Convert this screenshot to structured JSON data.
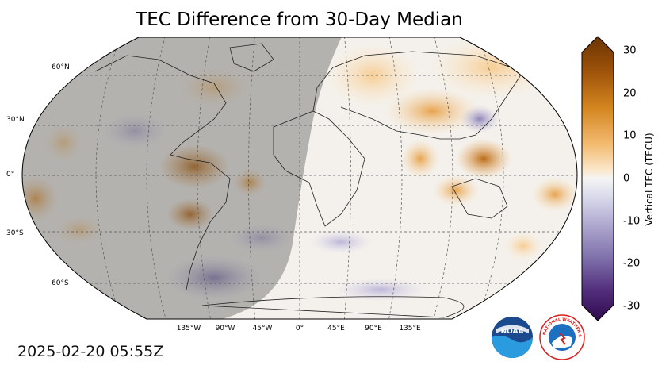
{
  "title": "TEC Difference from 30-Day Median",
  "timestamp": "2025-02-20 05:55Z",
  "lat_labels": [
    "60°N",
    "30°N",
    "0°",
    "30°S",
    "60°S"
  ],
  "lon_labels": [
    "135°W",
    "90°W",
    "45°W",
    "0°",
    "45°E",
    "90°E",
    "135°E"
  ],
  "colorbar": {
    "label": "Vertical TEC (TECU)",
    "ticks": [
      "30",
      "20",
      "10",
      "0",
      "-10",
      "-20",
      "-30"
    ],
    "min": -30,
    "max": 30,
    "colors": {
      "positive": "#8c4a06",
      "mid": "#f4f4f4",
      "negative": "#3b0f57"
    }
  },
  "logos": {
    "noaa_text": "NOAA",
    "nws_text": "NATIONAL WEATHER SERVICE"
  },
  "icons": [
    "noaa-logo",
    "nws-logo"
  ]
}
